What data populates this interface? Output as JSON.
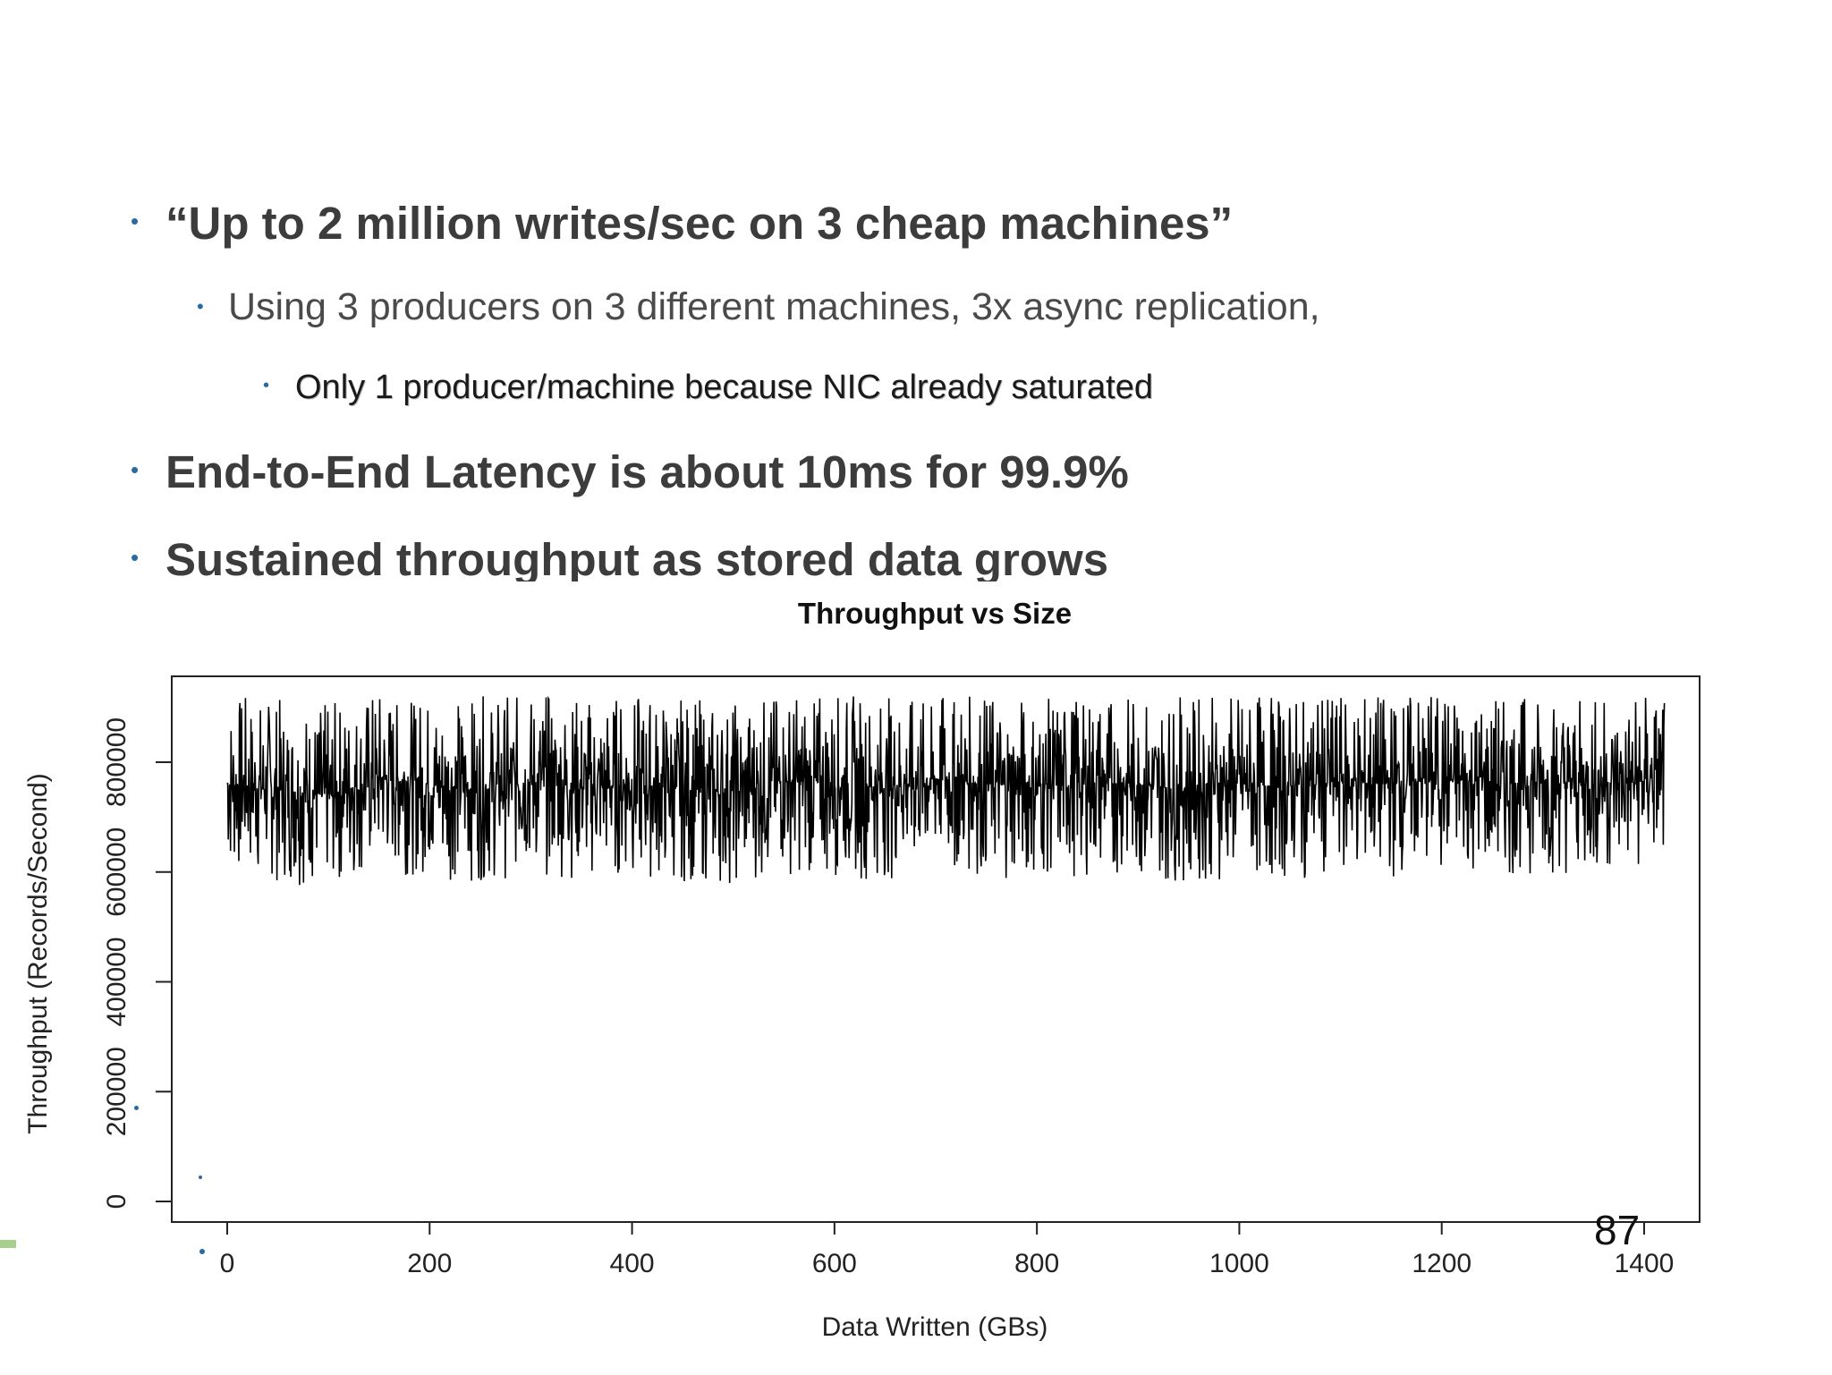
{
  "bullets": [
    {
      "text": "“Up to 2 million writes/sec on 3 cheap machines”",
      "level": 1
    },
    {
      "text": "Using 3 producers on 3 different machines, 3x async replication,",
      "level": 2
    },
    {
      "text": "Only 1 producer/machine because NIC already saturated",
      "level": 3
    },
    {
      "text": "End-to-End Latency is about 10ms for 99.9%",
      "level": 1
    },
    {
      "text": "Sustained throughput as stored data grows",
      "level": 1
    }
  ],
  "bullet_glyph": "•",
  "page_number": "87",
  "colors": {
    "bullet": "#2a6aa0",
    "heading_text": "#3c3c3c",
    "series": "#000000",
    "accent_green": "#a9cf8e"
  },
  "chart_data": {
    "type": "line",
    "title": "Throughput vs Size",
    "xlabel": "Data Written (GBs)",
    "ylabel": "Throughput (Records/Second)",
    "xlim": [
      0,
      1420
    ],
    "ylim": [
      0,
      920000
    ],
    "x_ticks": [
      "0",
      "200",
      "400",
      "600",
      "800",
      "1000",
      "1200",
      "1400"
    ],
    "y_ticks": [
      "0",
      "200000",
      "400000",
      "600000",
      "800000"
    ],
    "grid": false,
    "series": [
      {
        "x": [
          0,
          50,
          100,
          150,
          200,
          250,
          300,
          350,
          400,
          450,
          500,
          550,
          600,
          650,
          700,
          750,
          800,
          850,
          900,
          950,
          1000,
          1050,
          1100,
          1150,
          1200,
          1250,
          1300,
          1350,
          1400,
          1420
        ],
        "y": [
          760000,
          750000,
          740000,
          770000,
          760000,
          750000,
          765000,
          755000,
          760000,
          750000,
          745000,
          765000,
          760000,
          755000,
          770000,
          760000,
          755000,
          765000,
          760000,
          750000,
          760000,
          755000,
          765000,
          760000,
          770000,
          760000,
          765000,
          760000,
          765000,
          780000
        ],
        "min": 570000,
        "max": 920000
      }
    ]
  }
}
